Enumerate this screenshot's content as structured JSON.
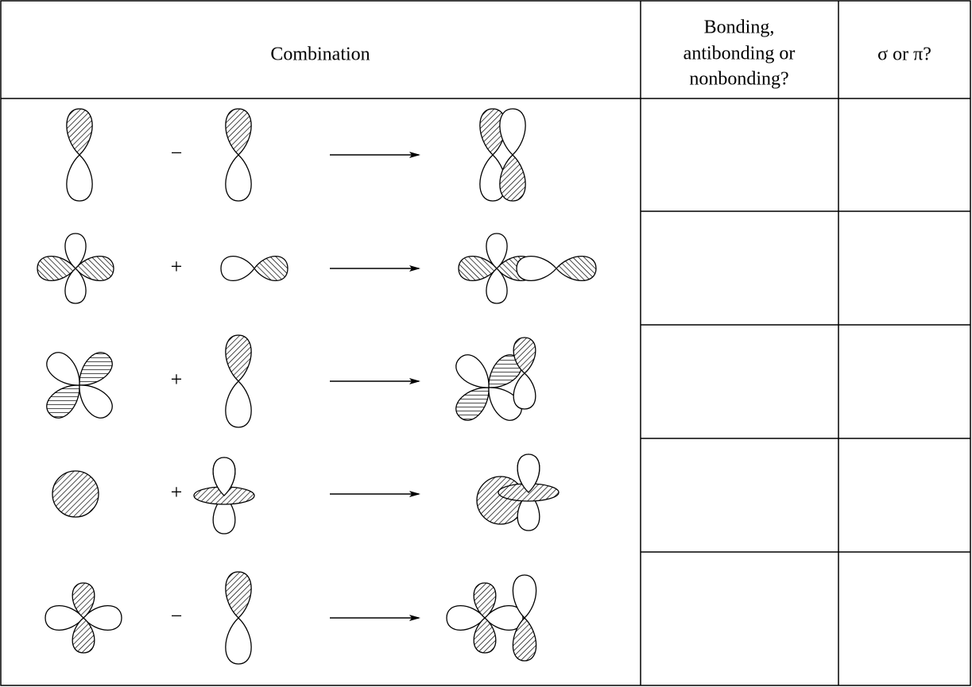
{
  "header": {
    "combination": "Combination",
    "bonding": [
      "Bonding,",
      "antibonding or",
      "nonbonding?"
    ],
    "symmetry": "σ or π?"
  },
  "rows": [
    {
      "operator": "−"
    },
    {
      "operator": "+"
    },
    {
      "operator": "+"
    },
    {
      "operator": "+"
    },
    {
      "operator": "−"
    }
  ]
}
